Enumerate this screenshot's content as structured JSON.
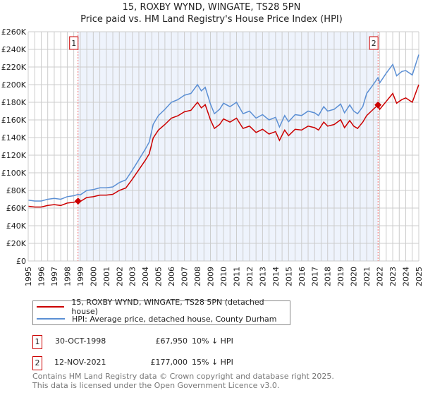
{
  "title": "15, ROXBY WYND, WINGATE, TS28 5PN",
  "subtitle": "Price paid vs. HM Land Registry's House Price Index (HPI)",
  "colors": {
    "property": "#cc0000",
    "hpi": "#5b8fd4",
    "shade": "#eef3fc"
  },
  "chart_data": {
    "type": "line",
    "title": "15, ROXBY WYND, WINGATE, TS28 5PN",
    "subtitle": "Price paid vs. HM Land Registry's House Price Index (HPI)",
    "xlim": [
      1995,
      2025
    ],
    "ylim": [
      0,
      260000
    ],
    "grid": true,
    "y_ticks": [
      "£0",
      "£20K",
      "£40K",
      "£60K",
      "£80K",
      "£100K",
      "£120K",
      "£140K",
      "£160K",
      "£180K",
      "£200K",
      "£220K",
      "£240K",
      "£260K"
    ],
    "x_ticks": [
      "1995",
      "1996",
      "1997",
      "1998",
      "1999",
      "2000",
      "2001",
      "2002",
      "2003",
      "2004",
      "2005",
      "2006",
      "2007",
      "2008",
      "2009",
      "2010",
      "2011",
      "2012",
      "2013",
      "2014",
      "2015",
      "2016",
      "2017",
      "2018",
      "2019",
      "2020",
      "2021",
      "2022",
      "2023",
      "2024",
      "2025"
    ],
    "shaded_range": [
      1998.83,
      2021.87
    ],
    "series": [
      {
        "name": "15, ROXBY WYND, WINGATE, TS28 5PN (detached house)",
        "color": "#cc0000",
        "points": [
          [
            1995,
            62.1
          ],
          [
            1995.5,
            61.2
          ],
          [
            1996,
            61.2
          ],
          [
            1996.5,
            63
          ],
          [
            1997,
            63.9
          ],
          [
            1997.5,
            63
          ],
          [
            1998,
            65.7
          ],
          [
            1998.5,
            66.6
          ],
          [
            1998.83,
            67.95
          ],
          [
            1999,
            67.5
          ],
          [
            1999.5,
            72
          ],
          [
            2000,
            72.9
          ],
          [
            2000.5,
            74.7
          ],
          [
            2001,
            74.7
          ],
          [
            2001.5,
            75.6
          ],
          [
            2002,
            80.1
          ],
          [
            2002.5,
            82.8
          ],
          [
            2003,
            92.7
          ],
          [
            2003.5,
            103.5
          ],
          [
            2004,
            114.3
          ],
          [
            2004.3,
            121.5
          ],
          [
            2004.6,
            139.5
          ],
          [
            2005,
            148.5
          ],
          [
            2005.5,
            154.8
          ],
          [
            2006,
            162
          ],
          [
            2006.5,
            164.7
          ],
          [
            2007,
            169.2
          ],
          [
            2007.5,
            171
          ],
          [
            2008,
            180
          ],
          [
            2008.3,
            173.7
          ],
          [
            2008.6,
            177.3
          ],
          [
            2009,
            160.2
          ],
          [
            2009.3,
            150.3
          ],
          [
            2009.7,
            154.8
          ],
          [
            2010,
            161.1
          ],
          [
            2010.5,
            157.5
          ],
          [
            2011,
            162
          ],
          [
            2011.5,
            150.3
          ],
          [
            2012,
            153
          ],
          [
            2012.5,
            145.8
          ],
          [
            2013,
            149.4
          ],
          [
            2013.5,
            144
          ],
          [
            2014,
            146.7
          ],
          [
            2014.3,
            136.8
          ],
          [
            2014.7,
            148.5
          ],
          [
            2015,
            142.2
          ],
          [
            2015.5,
            149.4
          ],
          [
            2016,
            148.5
          ],
          [
            2016.5,
            153
          ],
          [
            2017,
            151.2
          ],
          [
            2017.3,
            148.5
          ],
          [
            2017.7,
            157.5
          ],
          [
            2018,
            153
          ],
          [
            2018.5,
            154.8
          ],
          [
            2019,
            160.2
          ],
          [
            2019.3,
            151.2
          ],
          [
            2019.7,
            159.3
          ],
          [
            2020,
            153
          ],
          [
            2020.3,
            150.3
          ],
          [
            2020.7,
            157.5
          ],
          [
            2021,
            165
          ],
          [
            2021.5,
            172
          ],
          [
            2021.87,
            177
          ],
          [
            2022,
            172
          ],
          [
            2022.5,
            181
          ],
          [
            2023,
            190
          ],
          [
            2023.3,
            179
          ],
          [
            2023.7,
            183
          ],
          [
            2024,
            185
          ],
          [
            2024.5,
            180
          ],
          [
            2025,
            200
          ]
        ]
      },
      {
        "name": "HPI: Average price, detached house, County Durham",
        "color": "#5b8fd4",
        "points": [
          [
            1995,
            69
          ],
          [
            1995.5,
            68
          ],
          [
            1996,
            68
          ],
          [
            1996.5,
            70
          ],
          [
            1997,
            71
          ],
          [
            1997.5,
            70
          ],
          [
            1998,
            73
          ],
          [
            1998.5,
            74
          ],
          [
            1998.83,
            75.5
          ],
          [
            1999,
            75
          ],
          [
            1999.5,
            80
          ],
          [
            2000,
            81
          ],
          [
            2000.5,
            83
          ],
          [
            2001,
            83
          ],
          [
            2001.5,
            84
          ],
          [
            2002,
            89
          ],
          [
            2002.5,
            92
          ],
          [
            2003,
            103
          ],
          [
            2003.5,
            115
          ],
          [
            2004,
            127
          ],
          [
            2004.3,
            135
          ],
          [
            2004.6,
            155
          ],
          [
            2005,
            165
          ],
          [
            2005.5,
            172
          ],
          [
            2006,
            180
          ],
          [
            2006.5,
            183
          ],
          [
            2007,
            188
          ],
          [
            2007.5,
            190
          ],
          [
            2008,
            200
          ],
          [
            2008.3,
            193
          ],
          [
            2008.6,
            197
          ],
          [
            2009,
            178
          ],
          [
            2009.3,
            167
          ],
          [
            2009.7,
            172
          ],
          [
            2010,
            179
          ],
          [
            2010.5,
            175
          ],
          [
            2011,
            180
          ],
          [
            2011.5,
            167
          ],
          [
            2012,
            170
          ],
          [
            2012.5,
            162
          ],
          [
            2013,
            166
          ],
          [
            2013.5,
            160
          ],
          [
            2014,
            163
          ],
          [
            2014.3,
            152
          ],
          [
            2014.7,
            165
          ],
          [
            2015,
            158
          ],
          [
            2015.5,
            166
          ],
          [
            2016,
            165
          ],
          [
            2016.5,
            170
          ],
          [
            2017,
            168
          ],
          [
            2017.3,
            165
          ],
          [
            2017.7,
            175
          ],
          [
            2018,
            170
          ],
          [
            2018.5,
            172
          ],
          [
            2019,
            178
          ],
          [
            2019.3,
            168
          ],
          [
            2019.7,
            177
          ],
          [
            2020,
            170
          ],
          [
            2020.3,
            167
          ],
          [
            2020.7,
            175
          ],
          [
            2021,
            190
          ],
          [
            2021.5,
            200
          ],
          [
            2021.87,
            208
          ],
          [
            2022,
            202
          ],
          [
            2022.5,
            213
          ],
          [
            2023,
            223
          ],
          [
            2023.3,
            210
          ],
          [
            2023.7,
            215
          ],
          [
            2024,
            216
          ],
          [
            2024.5,
            211
          ],
          [
            2025,
            234
          ]
        ]
      }
    ],
    "y_unit": "thousands GBP",
    "annotations": [
      {
        "label": "1",
        "x": 1998.83,
        "y": 67.95
      },
      {
        "label": "2",
        "x": 2021.87,
        "y": 177
      }
    ]
  },
  "legend": {
    "property": "15, ROXBY WYND, WINGATE, TS28 5PN (detached house)",
    "hpi": "HPI: Average price, detached house, County Durham"
  },
  "transactions": [
    {
      "num": "1",
      "date": "30-OCT-1998",
      "price": "£67,950",
      "hpi": "10% ↓ HPI"
    },
    {
      "num": "2",
      "date": "12-NOV-2021",
      "price": "£177,000",
      "hpi": "15% ↓ HPI"
    }
  ],
  "footer": {
    "line1": "Contains HM Land Registry data © Crown copyright and database right 2025.",
    "line2": "This data is licensed under the Open Government Licence v3.0."
  }
}
